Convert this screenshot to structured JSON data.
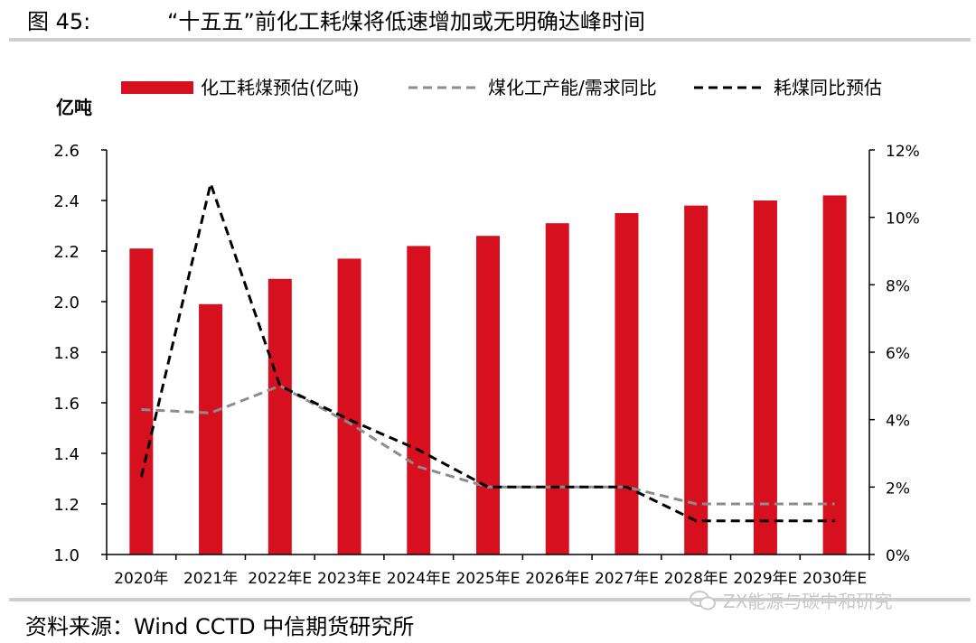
{
  "header": {
    "figure_label": "图 45:",
    "title": "“十五五”前化工耗煤将低速增加或无明确达峰时间"
  },
  "footer": {
    "source": "资料来源：Wind CCTD 中信期货研究所",
    "watermark": "ZX能源与碳中和研究"
  },
  "icons": {
    "watermark_icon": "wechat-icon"
  },
  "chart_data": {
    "type": "bar",
    "categories": [
      "2020年",
      "2021年",
      "2022年E",
      "2023年E",
      "2024年E",
      "2025年E",
      "2026年E",
      "2027年E",
      "2028年E",
      "2029年E",
      "2030年E"
    ],
    "left_axis": {
      "label": "亿吨",
      "ylim": [
        1.0,
        2.6
      ],
      "ticks": [
        "1.0",
        "1.2",
        "1.4",
        "1.6",
        "1.8",
        "2.0",
        "2.2",
        "2.4",
        "2.6"
      ]
    },
    "right_axis": {
      "ylim": [
        0,
        12
      ],
      "ticks": [
        "0%",
        "2%",
        "4%",
        "6%",
        "8%",
        "10%",
        "12%"
      ]
    },
    "series": [
      {
        "name": "化工耗煤预估(亿吨)",
        "type": "bar",
        "axis": "left",
        "color": "#d7101f",
        "values": [
          2.21,
          1.99,
          2.09,
          2.17,
          2.22,
          2.26,
          2.31,
          2.35,
          2.38,
          2.4,
          2.42
        ]
      },
      {
        "name": "煤化工产能/需求同比",
        "type": "line",
        "axis": "right",
        "color": "#8c8c8c",
        "dash": "dashed",
        "values": [
          4.3,
          4.2,
          5.0,
          3.9,
          2.6,
          2.0,
          2.0,
          2.0,
          1.5,
          1.5,
          1.5
        ]
      },
      {
        "name": "耗煤同比预估",
        "type": "line",
        "axis": "right",
        "color": "#000000",
        "dash": "dashed",
        "values": [
          2.3,
          11.0,
          5.0,
          4.0,
          3.1,
          2.0,
          2.0,
          2.0,
          1.0,
          1.0,
          1.0
        ]
      }
    ],
    "legend_position": "top",
    "grid": false
  }
}
